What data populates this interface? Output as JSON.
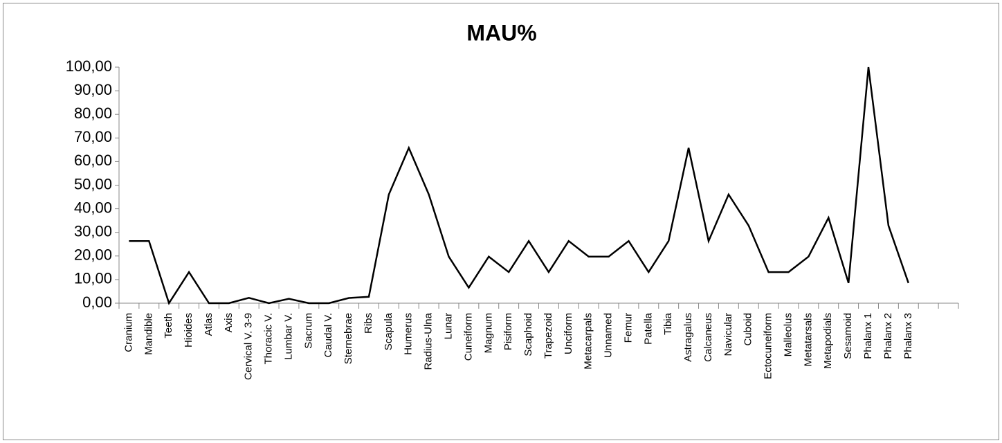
{
  "chart_data": {
    "type": "line",
    "title": "MAU%",
    "categories": [
      "Cranium",
      "Mandible",
      "Teeth",
      "Hioides",
      "Atlas",
      "Axis",
      "Cervical V. 3-9",
      "Thoracic V.",
      "Lumbar V.",
      "Sacrum",
      "Caudal V.",
      "Sternebrae",
      "Ribs",
      "Scapula",
      "Humerus",
      "Radius-Ulna",
      "Lunar",
      "Cuneiform",
      "Magnum",
      "Pisiform",
      "Scaphoid",
      "Trapezoid",
      "Unciform",
      "Metacarpals",
      "Unnamed",
      "Femur",
      "Patella",
      "Tibia",
      "Astragalus",
      "Calcaneus",
      "Navicular",
      "Cuboid",
      "Ectocuneiform",
      "Malleolus",
      "Metatarsals",
      "Metapodials",
      "Sesamoid",
      "Phalanx 1",
      "Phalanx 2",
      "Phalanx 3",
      null,
      null
    ],
    "values": [
      26.32,
      26.32,
      0,
      13.16,
      0,
      0,
      2.26,
      0,
      1.88,
      0,
      0,
      2.19,
      2.7,
      46.05,
      65.79,
      46.05,
      19.74,
      6.58,
      19.74,
      13.16,
      26.32,
      13.16,
      26.32,
      19.74,
      19.74,
      26.32,
      13.16,
      26.32,
      65.79,
      26.32,
      46.05,
      32.89,
      13.16,
      13.16,
      19.74,
      36.18,
      8.55,
      100,
      32.89,
      8.55,
      null,
      null
    ],
    "color": "#000000",
    "ylim": [
      0,
      100
    ],
    "yticks": [
      {
        "value": 0,
        "label": "0,00"
      },
      {
        "value": 10,
        "label": "10,00"
      },
      {
        "value": 20,
        "label": "20,00"
      },
      {
        "value": 30,
        "label": "30,00"
      },
      {
        "value": 40,
        "label": "40,00"
      },
      {
        "value": 50,
        "label": "50,00"
      },
      {
        "value": 60,
        "label": "60,00"
      },
      {
        "value": 70,
        "label": "70,00"
      },
      {
        "value": 80,
        "label": "80,00"
      },
      {
        "value": 90,
        "label": "90,00"
      },
      {
        "value": 100,
        "label": "100,00"
      }
    ],
    "grid": false
  }
}
